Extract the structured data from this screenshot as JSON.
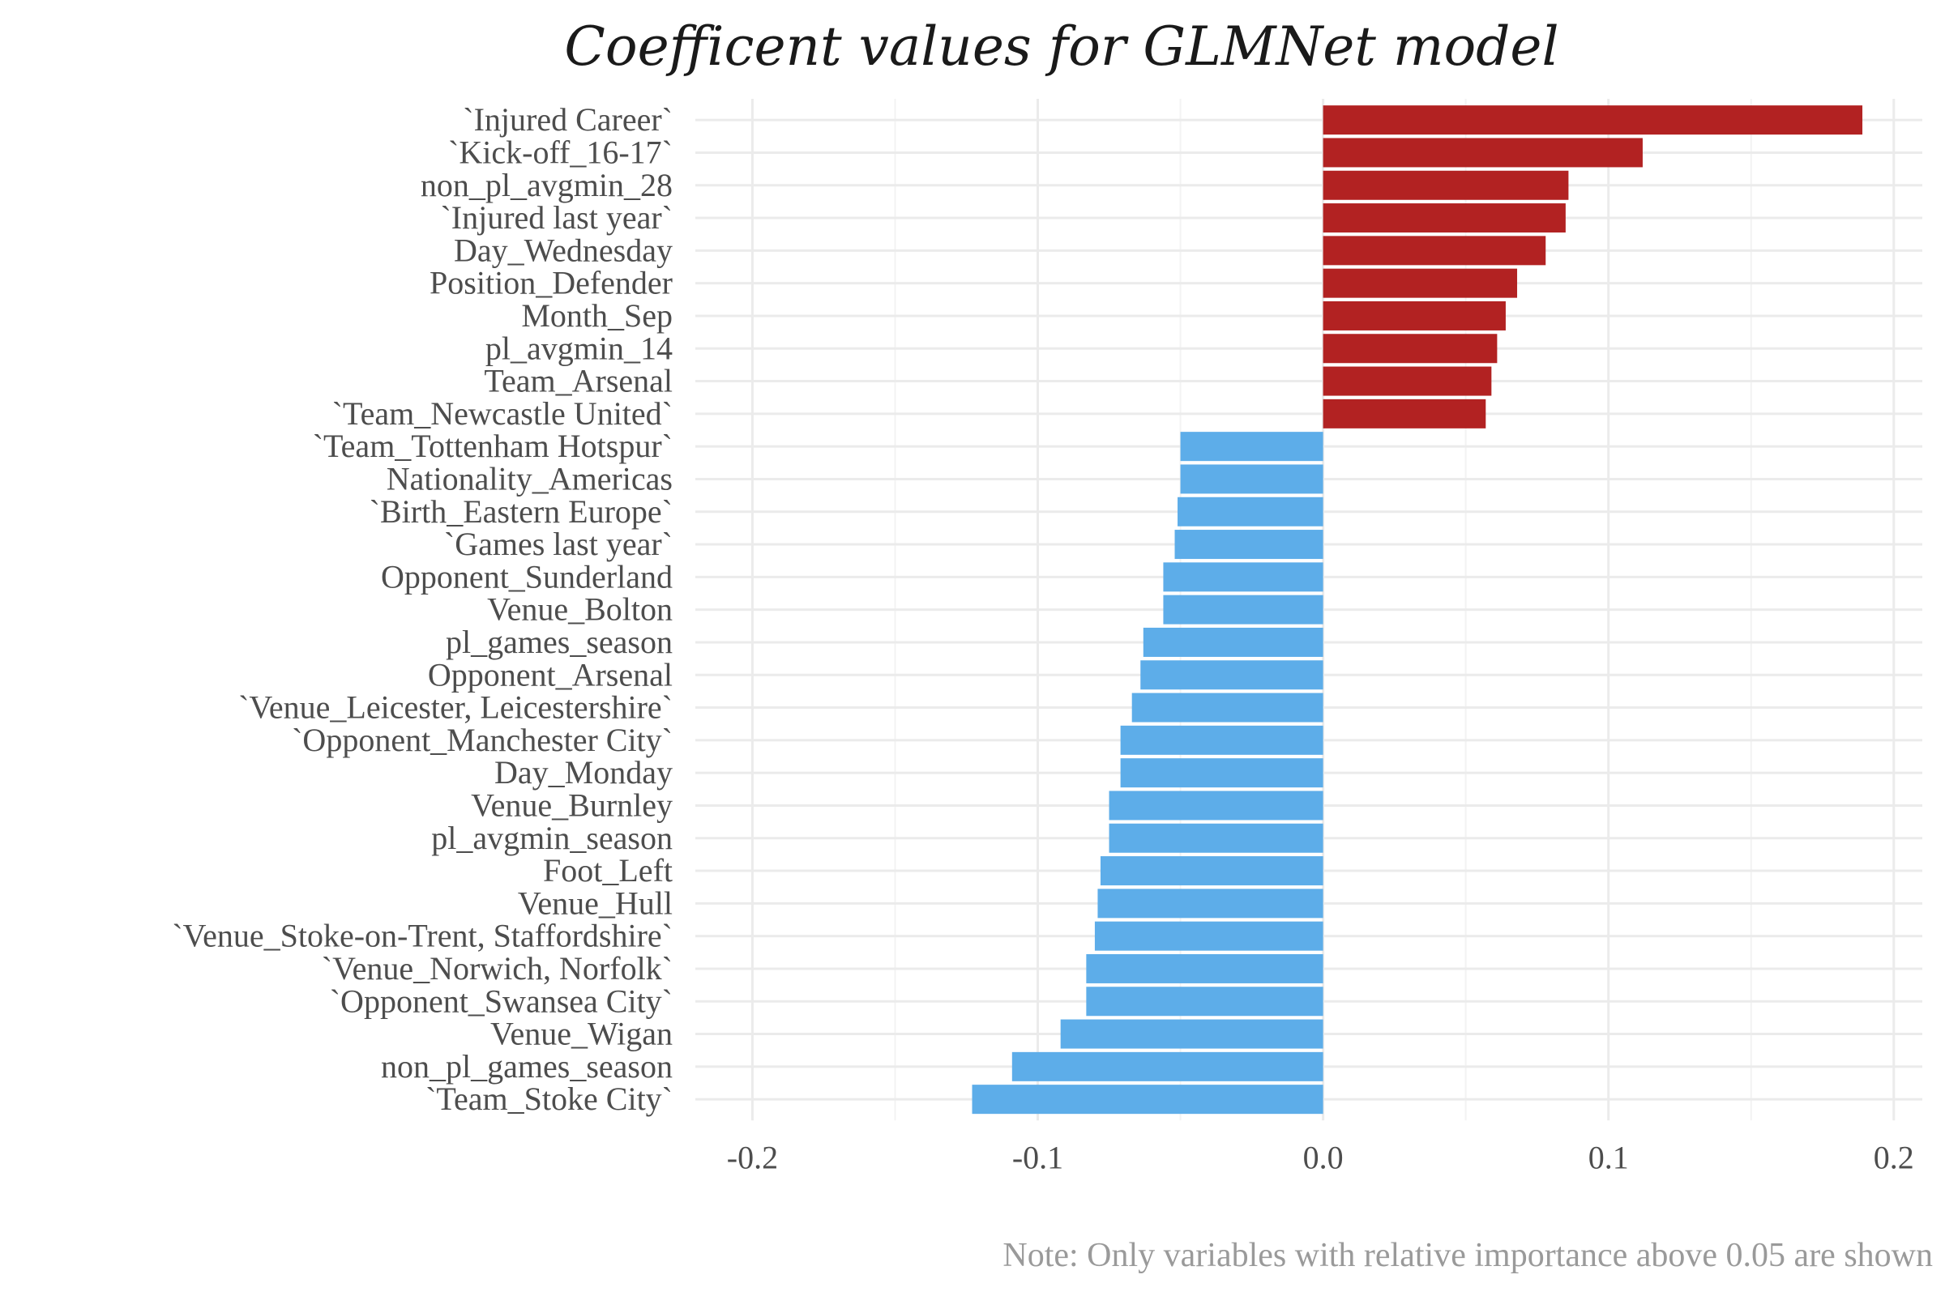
{
  "chart_data": {
    "type": "bar",
    "orientation": "horizontal",
    "title": "Coefficent values for GLMNet model",
    "caption": "Note: Only variables with relative importance above 0.05 are shown",
    "xlabel": "",
    "ylabel": "",
    "xlim": [
      -0.2,
      0.2
    ],
    "xticks": [
      -0.2,
      -0.1,
      0.0,
      0.1,
      0.2
    ],
    "xtick_labels": [
      "-0.2",
      "-0.1",
      "0.0",
      "0.1",
      "0.2"
    ],
    "grid": true,
    "legend": "none",
    "colors": {
      "positive": "#b22222",
      "negative": "#5dade9"
    },
    "categories": [
      "`Injured Career`",
      "`Kick-off_16-17`",
      "non_pl_avgmin_28",
      "`Injured last year`",
      "Day_Wednesday",
      "Position_Defender",
      "Month_Sep",
      "pl_avgmin_14",
      "Team_Arsenal",
      "`Team_Newcastle United`",
      "`Team_Tottenham Hotspur`",
      "Nationality_Americas",
      "`Birth_Eastern Europe`",
      "`Games last year`",
      "Opponent_Sunderland",
      "Venue_Bolton",
      "pl_games_season",
      "Opponent_Arsenal",
      "`Venue_Leicester, Leicestershire`",
      "`Opponent_Manchester City`",
      "Day_Monday",
      "Venue_Burnley",
      "pl_avgmin_season",
      "Foot_Left",
      "Venue_Hull",
      "`Venue_Stoke-on-Trent, Staffordshire`",
      "`Venue_Norwich, Norfolk`",
      "`Opponent_Swansea City`",
      "Venue_Wigan",
      "non_pl_games_season",
      "`Team_Stoke City`"
    ],
    "values": [
      0.189,
      0.112,
      0.086,
      0.085,
      0.078,
      0.068,
      0.064,
      0.061,
      0.059,
      0.057,
      -0.05,
      -0.05,
      -0.051,
      -0.052,
      -0.056,
      -0.056,
      -0.063,
      -0.064,
      -0.067,
      -0.071,
      -0.071,
      -0.075,
      -0.075,
      -0.078,
      -0.079,
      -0.08,
      -0.083,
      -0.083,
      -0.092,
      -0.109,
      -0.123
    ]
  }
}
